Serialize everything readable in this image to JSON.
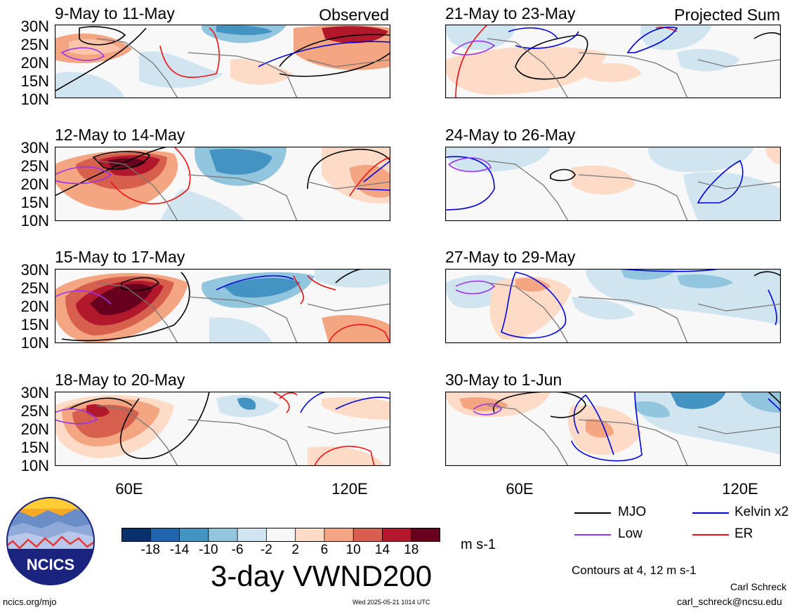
{
  "observed_label": "Observed",
  "projected_label": "Projected Sum",
  "lat_labels": [
    "30N",
    "25N",
    "20N",
    "15N",
    "10N"
  ],
  "lon_labels": [
    "60E",
    "120E"
  ],
  "panels_left": [
    {
      "title": "9-May to 11-May"
    },
    {
      "title": "12-May to 14-May"
    },
    {
      "title": "15-May to 17-May"
    },
    {
      "title": "18-May to 20-May"
    }
  ],
  "panels_right": [
    {
      "title": "21-May to 23-May"
    },
    {
      "title": "24-May to 26-May"
    },
    {
      "title": "27-May to 29-May"
    },
    {
      "title": "30-May to 1-Jun"
    }
  ],
  "colorbar": {
    "labels": [
      "-18",
      "-14",
      "-10",
      "-6",
      "-2",
      "2",
      "6",
      "10",
      "14",
      "18"
    ],
    "colors": [
      "#08306b",
      "#2166ac",
      "#4393c3",
      "#92c5de",
      "#d1e5f0",
      "#f7f7f7",
      "#fddbc7",
      "#f4a582",
      "#d6604d",
      "#b2182b",
      "#67001f"
    ],
    "units": "m s-1"
  },
  "main_title": "3-day VWND200",
  "legend": {
    "mjo": "MJO",
    "kelvin": "Kelvin x2",
    "low": "Low",
    "er": "ER",
    "colors": {
      "mjo": "#000000",
      "kelvin": "#0000dd",
      "low": "#9933ee",
      "er": "#ee1111"
    }
  },
  "contours_note": "Contours at 4, 12 m s-1",
  "author": "Carl Schreck",
  "email": "carl_schreck@ncsu.edu",
  "website": "ncics.org/mjo",
  "timestamp": "Wed 2025-05-21 1014 UTC",
  "logo_text": "NCICS"
}
